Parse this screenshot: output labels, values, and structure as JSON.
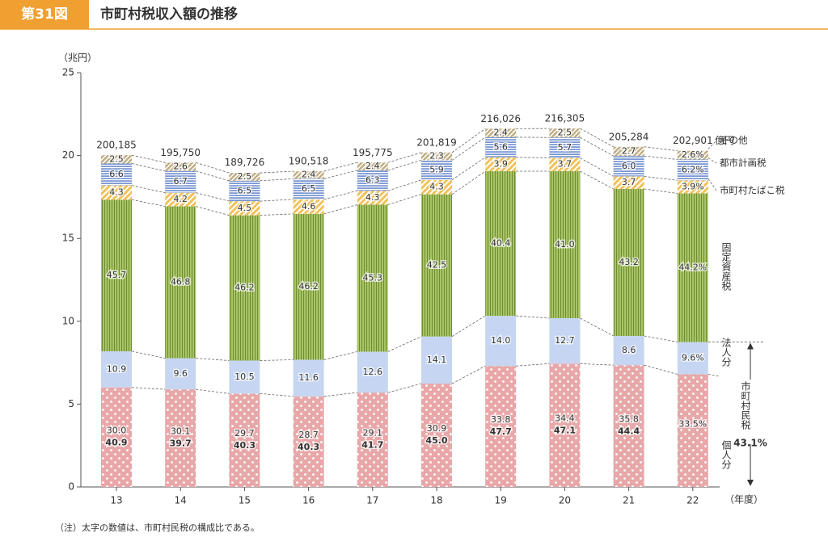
{
  "chart_data": {
    "type": "bar",
    "figure_label": "第31図",
    "title": "市町村税収入額の推移",
    "ylabel": "（兆円）",
    "xlabel": "（年度）",
    "note": "（注）太字の数値は、市町村民税の構成比である。",
    "categories": [
      "13",
      "14",
      "15",
      "16",
      "17",
      "18",
      "19",
      "20",
      "21",
      "22"
    ],
    "ylim": [
      0,
      25
    ],
    "yticks": [
      0,
      5,
      10,
      15,
      20,
      25
    ],
    "totals": {
      "unit": "億円",
      "values": [
        200185,
        195750,
        189726,
        190518,
        195775,
        201819,
        216026,
        216305,
        205284,
        202901
      ],
      "value_labels": [
        "200,185",
        "195,750",
        "189,726",
        "190,518",
        "195,775",
        "201,819",
        "216,026",
        "216,305",
        "205,284",
        "202,901"
      ]
    },
    "series": [
      {
        "name": "個人分",
        "color": "#e8a7a8",
        "values": [
          30.0,
          30.1,
          29.7,
          28.7,
          29.1,
          30.9,
          33.8,
          34.4,
          35.8,
          33.5
        ],
        "value_labels": [
          "30.0",
          "30.1",
          "29.7",
          "28.7",
          "29.1",
          "30.9",
          "33.8",
          "34.4",
          "35.8",
          "33.5%"
        ]
      },
      {
        "name": "法人分",
        "color": "#c6d6f2",
        "values": [
          10.9,
          9.6,
          10.5,
          11.6,
          12.6,
          14.1,
          14.0,
          12.7,
          8.6,
          9.6
        ],
        "value_labels": [
          "10.9",
          "9.6",
          "10.5",
          "11.6",
          "12.6",
          "14.1",
          "14.0",
          "12.7",
          "8.6",
          "9.6%"
        ]
      },
      {
        "name": "固定資産税",
        "color": "#a8c466",
        "values": [
          45.7,
          46.8,
          46.2,
          46.2,
          45.3,
          42.5,
          40.4,
          41.0,
          43.2,
          44.2
        ],
        "value_labels": [
          "45.7",
          "46.8",
          "46.2",
          "46.2",
          "45.3",
          "42.5",
          "40.4",
          "41.0",
          "43.2",
          "44.2%"
        ]
      },
      {
        "name": "市町村たばこ税",
        "color": "#f0c25a",
        "values": [
          4.3,
          4.2,
          4.5,
          4.6,
          4.3,
          4.3,
          3.9,
          3.7,
          3.7,
          3.9
        ],
        "value_labels": [
          "4.3",
          "4.2",
          "4.5",
          "4.6",
          "4.3",
          "4.3",
          "3.9",
          "3.7",
          "3.7",
          "3.9%"
        ]
      },
      {
        "name": "都市計画税",
        "color": "#7b98d4",
        "values": [
          6.6,
          6.7,
          6.5,
          6.5,
          6.3,
          5.9,
          5.6,
          5.7,
          6.0,
          6.2
        ],
        "value_labels": [
          "6.6",
          "6.7",
          "6.5",
          "6.5",
          "6.3",
          "5.9",
          "5.6",
          "5.7",
          "6.0",
          "6.2%"
        ]
      },
      {
        "name": "その他",
        "color": "#bfae84",
        "values": [
          2.5,
          2.6,
          2.5,
          2.4,
          2.4,
          2.3,
          2.4,
          2.5,
          2.7,
          2.6
        ],
        "value_labels": [
          "2.5",
          "2.6",
          "2.5",
          "2.4",
          "2.4",
          "2.3",
          "2.4",
          "2.5",
          "2.7",
          "2.6%"
        ]
      }
    ],
    "resident_tax": {
      "name": "市町村民税",
      "values": [
        40.9,
        39.7,
        40.3,
        40.3,
        41.7,
        45.0,
        47.7,
        47.1,
        44.4,
        43.1
      ],
      "value_labels": [
        "40.9",
        "39.7",
        "40.3",
        "40.3",
        "41.7",
        "45.0",
        "47.7",
        "47.1",
        "44.4",
        "43.1%"
      ]
    }
  }
}
